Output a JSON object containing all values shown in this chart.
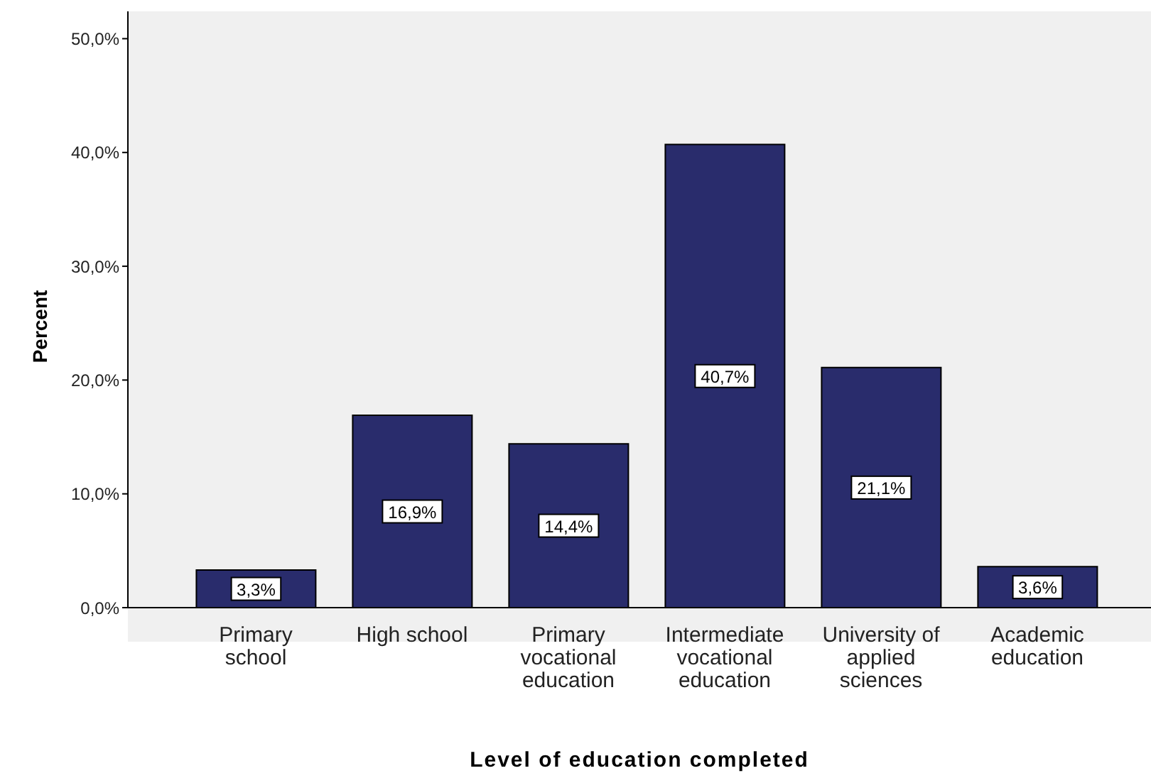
{
  "chart_data": {
    "type": "bar",
    "xlabel": "Level of education completed",
    "ylabel": "Percent",
    "categories": [
      "Primary school",
      "High school",
      "Primary vocational education",
      "Intermediate vocational education",
      "University of applied sciences",
      "Academic education"
    ],
    "values": [
      3.3,
      16.9,
      14.4,
      40.7,
      21.1,
      3.6
    ],
    "value_labels": [
      "3,3%",
      "16,9%",
      "14,4%",
      "40,7%",
      "21,1%",
      "3,6%"
    ],
    "color": "#292c6c",
    "ylim": [
      0,
      52.4
    ],
    "yticks": [
      {
        "value": 0,
        "label": "0,0%"
      },
      {
        "value": 10,
        "label": "10,0%"
      },
      {
        "value": 20,
        "label": "20,0%"
      },
      {
        "value": 30,
        "label": "30,0%"
      },
      {
        "value": 40,
        "label": "40,0%"
      },
      {
        "value": 50,
        "label": "50,0%"
      }
    ],
    "grid": false,
    "legend": false
  }
}
